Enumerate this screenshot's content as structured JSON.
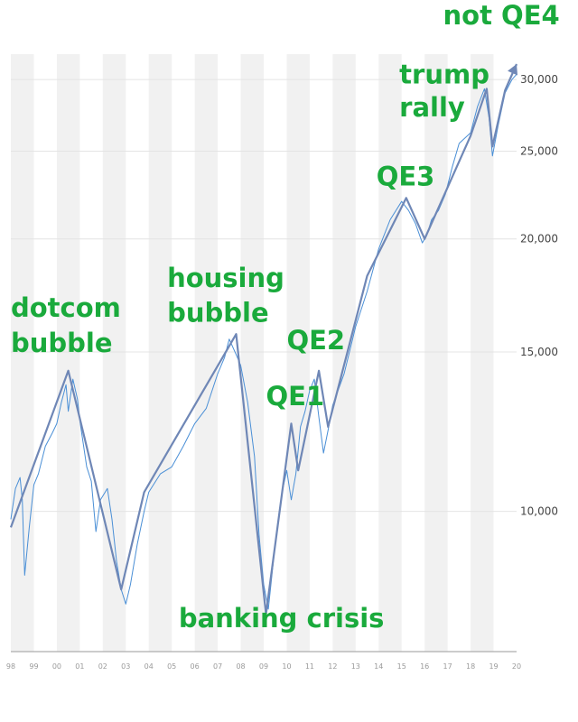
{
  "chart_data": {
    "type": "line",
    "title": "",
    "xlabel": "",
    "ylabel": "",
    "y_scale": "log",
    "ylim": [
      7000,
      32000
    ],
    "xlim": [
      1998,
      2020
    ],
    "grid": "horizontal",
    "x_ticks": [
      "98",
      "99",
      "00",
      "01",
      "02",
      "03",
      "04",
      "05",
      "06",
      "07",
      "08",
      "09",
      "10",
      "11",
      "12",
      "13",
      "14",
      "15",
      "16",
      "17",
      "18",
      "19",
      "20"
    ],
    "y_ticks": [
      {
        "value": 10000,
        "label": "10,000"
      },
      {
        "value": 15000,
        "label": "15,000"
      },
      {
        "value": 20000,
        "label": "20,000"
      },
      {
        "value": 25000,
        "label": "25,000"
      },
      {
        "value": 30000,
        "label": "30,000"
      }
    ],
    "series": [
      {
        "color": "#4a8fd6",
        "x": [
          1998.0,
          1998.2,
          1998.4,
          1998.5,
          1998.6,
          1998.8,
          1999.0,
          1999.2,
          1999.5,
          1999.8,
          2000.0,
          2000.2,
          2000.4,
          2000.5,
          2000.7,
          2000.9,
          2001.0,
          2001.3,
          2001.5,
          2001.7,
          2001.9,
          2002.2,
          2002.4,
          2002.6,
          2002.8,
          2003.0,
          2003.2,
          2003.5,
          2003.8,
          2004.0,
          2004.5,
          2005.0,
          2005.5,
          2006.0,
          2006.5,
          2007.0,
          2007.3,
          2007.5,
          2007.8,
          2008.0,
          2008.3,
          2008.6,
          2008.8,
          2009.0,
          2009.2,
          2009.5,
          2009.8,
          2010.0,
          2010.2,
          2010.4,
          2010.6,
          2010.8,
          2011.0,
          2011.2,
          2011.4,
          2011.6,
          2011.8,
          2012.0,
          2012.5,
          2013.0,
          2013.5,
          2014.0,
          2014.5,
          2015.0,
          2015.3,
          2015.6,
          2015.9,
          2016.1,
          2016.3,
          2016.6,
          2016.9,
          2017.2,
          2017.5,
          2018.0,
          2018.3,
          2018.6,
          2018.8,
          2018.95,
          2019.2,
          2019.5,
          2019.8,
          2020.0
        ],
        "y": [
          9800,
          10600,
          10900,
          10300,
          8500,
          9600,
          10700,
          11000,
          11800,
          12200,
          12500,
          13200,
          13800,
          12900,
          14000,
          13300,
          12600,
          11200,
          10800,
          9500,
          10300,
          10600,
          9800,
          8800,
          8200,
          7900,
          8300,
          9200,
          10000,
          10500,
          11000,
          11200,
          11800,
          12500,
          13000,
          14200,
          14800,
          15500,
          14900,
          14500,
          13200,
          11500,
          9400,
          8300,
          7800,
          9200,
          10500,
          11100,
          10300,
          11000,
          12400,
          12900,
          13600,
          14000,
          12700,
          11600,
          12300,
          13100,
          14200,
          16000,
          17500,
          19500,
          21000,
          22000,
          21500,
          20800,
          19800,
          20200,
          21000,
          21500,
          22400,
          24000,
          25500,
          26200,
          28000,
          29300,
          27200,
          24700,
          26700,
          29000,
          30000,
          30400
        ]
      },
      {
        "color": "#6f87b6",
        "x": [
          1998.0,
          2000.5,
          2002.8,
          2003.8,
          2007.8,
          2009.1,
          2010.2,
          2010.5,
          2011.4,
          2011.8,
          2013.5,
          2015.2,
          2016.0,
          2018.0,
          2018.7,
          2018.95,
          2019.5,
          2020.0
        ],
        "y": [
          9600,
          14300,
          8200,
          10500,
          15700,
          7700,
          12500,
          11100,
          14300,
          12400,
          18200,
          22200,
          20000,
          26000,
          29300,
          25300,
          29200,
          31200
        ]
      }
    ],
    "annotations": [
      {
        "text": "dotcom",
        "x": 1998.0,
        "y": 16400
      },
      {
        "text": "bubble",
        "x": 1998.0,
        "y": 15000
      },
      {
        "text": "housing",
        "x": 2004.8,
        "y": 17700
      },
      {
        "text": "bubble",
        "x": 2004.8,
        "y": 16200
      },
      {
        "text": "banking crisis",
        "x": 2005.3,
        "y": 7450
      },
      {
        "text": "QE1",
        "x": 2009.1,
        "y": 13100
      },
      {
        "text": "QE2",
        "x": 2010.0,
        "y": 15100
      },
      {
        "text": "QE3",
        "x": 2013.9,
        "y": 22900
      },
      {
        "text": "trump",
        "x": 2014.9,
        "y": 29700
      },
      {
        "text": "rally",
        "x": 2014.9,
        "y": 27300
      },
      {
        "text": "not QE4",
        "x": 2016.8,
        "y": 34500
      }
    ]
  }
}
